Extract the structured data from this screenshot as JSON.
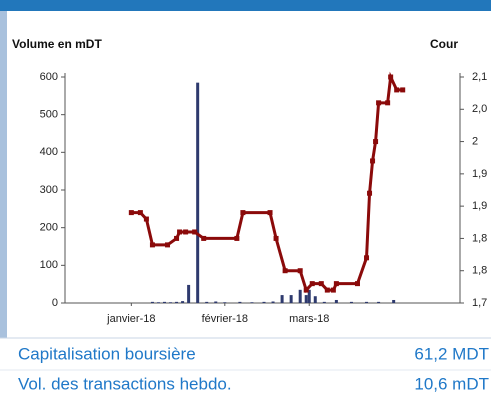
{
  "chart_data": {
    "type": "bar",
    "y_label": "Volume en mDT",
    "y2_label": "Cour",
    "xlim": [
      -22,
      109
    ],
    "xticks": [
      {
        "value": 0,
        "label": "janvier-18"
      },
      {
        "value": 31,
        "label": "février-18"
      },
      {
        "value": 59,
        "label": "mars-18"
      }
    ],
    "ylim": [
      0,
      600
    ],
    "yticks": [
      0,
      100,
      200,
      300,
      400,
      500,
      600
    ],
    "y2lim": [
      1.75,
      2.1
    ],
    "y2ticks": [
      {
        "value": 1.75,
        "label": "1,7"
      },
      {
        "value": 1.8,
        "label": "1,8"
      },
      {
        "value": 1.85,
        "label": "1,8"
      },
      {
        "value": 1.9,
        "label": "1,9"
      },
      {
        "value": 1.95,
        "label": "1,9"
      },
      {
        "value": 2.0,
        "label": "2"
      },
      {
        "value": 2.05,
        "label": "2,0"
      },
      {
        "value": 2.1,
        "label": "2,1"
      }
    ],
    "series": [
      {
        "type": "bar",
        "color": "#2e3a6e",
        "x": [
          7,
          9,
          11,
          13,
          15,
          17,
          19,
          22,
          25,
          28,
          31,
          36,
          40,
          44,
          47,
          50,
          53,
          56,
          58,
          59,
          61,
          64,
          68,
          73,
          78,
          82,
          87
        ],
        "values": [
          3,
          2,
          3,
          2,
          3,
          5,
          48,
          585,
          3,
          4,
          2,
          3,
          2,
          3,
          4,
          21,
          21,
          35,
          21,
          35,
          18,
          3,
          8,
          3,
          3,
          3,
          8
        ]
      },
      {
        "type": "line",
        "axis": "y2",
        "color": "#8b0a0a",
        "x": [
          0,
          3,
          5,
          7,
          12,
          15,
          16,
          18,
          21,
          24,
          35,
          37,
          46,
          48,
          51,
          56,
          58,
          60,
          63,
          65,
          67,
          68,
          75,
          78,
          79,
          80,
          81,
          82,
          85,
          86,
          88,
          90
        ],
        "values": [
          1.89,
          1.89,
          1.88,
          1.84,
          1.84,
          1.85,
          1.86,
          1.86,
          1.86,
          1.85,
          1.85,
          1.89,
          1.89,
          1.85,
          1.8,
          1.8,
          1.77,
          1.78,
          1.78,
          1.77,
          1.77,
          1.78,
          1.78,
          1.82,
          1.92,
          1.97,
          2.0,
          2.06,
          2.06,
          2.1,
          2.08,
          2.08
        ]
      }
    ]
  },
  "stats": [
    {
      "label": "Capitalisation boursière",
      "value": "61,2 MDT"
    },
    {
      "label": "Vol. des transactions hebdo.",
      "value": "10,6 mDT"
    }
  ]
}
